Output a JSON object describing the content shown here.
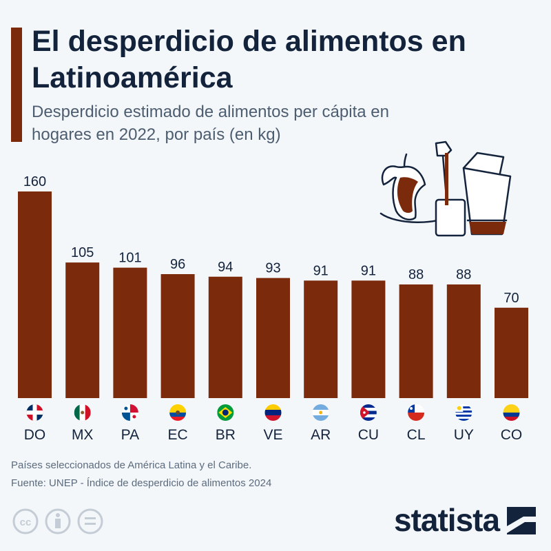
{
  "header": {
    "title": "El desperdicio de alimentos en Latinoamérica",
    "subtitle": "Desperdicio estimado de alimentos per cápita en hogares en 2022, por país (en kg)"
  },
  "colors": {
    "bar": "#7b2a0c",
    "title": "#13233b",
    "text": "#4d5d70",
    "background": "#f4f7fa"
  },
  "chart_data": {
    "type": "bar",
    "categories": [
      "DO",
      "MX",
      "PA",
      "EC",
      "BR",
      "VE",
      "AR",
      "CU",
      "CL",
      "UY",
      "CO"
    ],
    "values": [
      160,
      105,
      101,
      96,
      94,
      93,
      91,
      91,
      88,
      88,
      70
    ],
    "title": "El desperdicio de alimentos en Latinoamérica",
    "subtitle": "Desperdicio estimado de alimentos per cápita en hogares en 2022, por país (en kg)",
    "xlabel": "",
    "ylabel": "",
    "ylim": [
      0,
      160
    ],
    "grid": false,
    "data_labels": true
  },
  "footer": {
    "note": "Países seleccionados de América Latina y el Caribe.",
    "source": "Fuente: UNEP - Índice de desperdicio de alimentos 2024",
    "brand": "statista",
    "license_icons": [
      "cc-icon",
      "by-person-icon",
      "nd-equals-icon"
    ]
  }
}
